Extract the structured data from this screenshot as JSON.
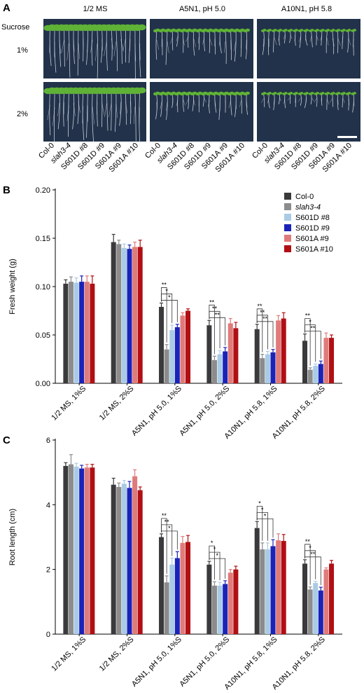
{
  "panel_a": {
    "label": "A",
    "row_header": "Sucrose",
    "columns": [
      "1/2 MS",
      "A5N1, pH 5.0",
      "A10N1, pH 5.8"
    ],
    "rows": [
      "1%",
      "2%"
    ],
    "genotypes": [
      "Col-0",
      "slah3-4",
      "S601D #8",
      "S601D #9",
      "S601A #9",
      "S601A #10"
    ],
    "italic_genotype": "slah3-4",
    "plate_color": "#22324a",
    "leaf_color": "#5fb236",
    "root_color": "#e6e9ee"
  },
  "chart_data": [
    {
      "label": "B",
      "type": "bar",
      "ylabel": "Fresh weight (g)",
      "ylim": [
        0,
        0.2
      ],
      "yticks": [
        "0.00",
        "0.05",
        "0.10",
        "0.15",
        "0.20"
      ],
      "categories": [
        "1/2 MS, 1%S",
        "1/2 MS, 2%S",
        "A5N1, pH 5.0, 1%S",
        "A5N1, pH 5.0, 2%S",
        "A10N1, pH 5.8, 1%S",
        "A10N1, pH 5.8, 2%S"
      ],
      "legend": "top-right",
      "series": [
        {
          "name": "Col-0",
          "color": "#3a3a3c",
          "values": [
            0.103,
            0.146,
            0.079,
            0.06,
            0.056,
            0.044
          ],
          "errors": [
            0.004,
            0.008,
            0.004,
            0.005,
            0.005,
            0.007
          ]
        },
        {
          "name": "slah3-4",
          "color": "#8c8c8c",
          "values": [
            0.105,
            0.144,
            0.035,
            0.024,
            0.026,
            0.014
          ],
          "errors": [
            0.005,
            0.004,
            0.005,
            0.004,
            0.004,
            0.002
          ]
        },
        {
          "name": "S601D #8",
          "color": "#a9cbe6",
          "values": [
            0.104,
            0.14,
            0.055,
            0.03,
            0.03,
            0.018
          ],
          "errors": [
            0.005,
            0.004,
            0.005,
            0.004,
            0.003,
            0.002
          ]
        },
        {
          "name": "S601D #9",
          "color": "#1a22b8",
          "values": [
            0.105,
            0.139,
            0.058,
            0.033,
            0.032,
            0.02
          ],
          "errors": [
            0.006,
            0.004,
            0.003,
            0.004,
            0.003,
            0.003
          ]
        },
        {
          "name": "S601A #9",
          "color": "#e07b7b",
          "values": [
            0.105,
            0.141,
            0.07,
            0.062,
            0.065,
            0.047
          ],
          "errors": [
            0.006,
            0.005,
            0.003,
            0.005,
            0.005,
            0.005
          ]
        },
        {
          "name": "S601A #10",
          "color": "#b00f14",
          "values": [
            0.103,
            0.141,
            0.075,
            0.057,
            0.067,
            0.047
          ],
          "errors": [
            0.008,
            0.007,
            0.002,
            0.006,
            0.006,
            0.003
          ]
        }
      ],
      "significance": [
        {
          "group": 2,
          "series": 1,
          "mark": "**"
        },
        {
          "group": 2,
          "series": 2,
          "mark": "*"
        },
        {
          "group": 2,
          "series": 3,
          "mark": "*"
        },
        {
          "group": 3,
          "series": 1,
          "mark": "**"
        },
        {
          "group": 3,
          "series": 2,
          "mark": "**"
        },
        {
          "group": 3,
          "series": 3,
          "mark": "**"
        },
        {
          "group": 4,
          "series": 1,
          "mark": "**"
        },
        {
          "group": 4,
          "series": 2,
          "mark": "**"
        },
        {
          "group": 4,
          "series": 3,
          "mark": "**"
        },
        {
          "group": 5,
          "series": 1,
          "mark": "**"
        },
        {
          "group": 5,
          "series": 2,
          "mark": "*"
        },
        {
          "group": 5,
          "series": 3,
          "mark": "**"
        }
      ]
    },
    {
      "label": "C",
      "type": "bar",
      "ylabel": "Root length (cm)",
      "ylim": [
        0,
        6
      ],
      "yticks": [
        "0",
        "2",
        "4",
        "6"
      ],
      "categories": [
        "1/2 MS, 1%S",
        "1/2 MS, 2%S",
        "A5N1, pH 5.0, 1%S",
        "A5N1, pH 5.0, 2%S",
        "A10N1, pH 5.8, 1%S",
        "A10N1, pH 5.8, 2%S"
      ],
      "series": [
        {
          "name": "Col-0",
          "color": "#3a3a3c",
          "values": [
            5.2,
            4.62,
            3.0,
            2.15,
            3.28,
            2.18
          ],
          "errors": [
            0.1,
            0.2,
            0.1,
            0.1,
            0.2,
            0.12
          ]
        },
        {
          "name": "slah3-4",
          "color": "#8c8c8c",
          "values": [
            5.25,
            4.55,
            1.6,
            1.5,
            2.62,
            1.38
          ],
          "errors": [
            0.3,
            0.12,
            0.2,
            0.12,
            0.2,
            0.08
          ]
        },
        {
          "name": "S601D #8",
          "color": "#a9cbe6",
          "values": [
            5.18,
            4.65,
            2.15,
            1.5,
            2.62,
            1.58
          ],
          "errors": [
            0.1,
            0.1,
            0.2,
            0.1,
            0.2,
            0.05
          ]
        },
        {
          "name": "S601D #9",
          "color": "#1a22b8",
          "values": [
            5.12,
            4.52,
            2.35,
            1.55,
            2.72,
            1.35
          ],
          "errors": [
            0.1,
            0.2,
            0.2,
            0.1,
            0.2,
            0.1
          ]
        },
        {
          "name": "S601A #9",
          "color": "#e07b7b",
          "values": [
            5.15,
            4.88,
            2.82,
            1.9,
            2.9,
            2.0
          ],
          "errors": [
            0.1,
            0.2,
            0.2,
            0.1,
            0.2,
            0.05
          ]
        },
        {
          "name": "S601A #10",
          "color": "#b00f14",
          "values": [
            5.15,
            4.45,
            2.85,
            2.0,
            2.88,
            2.18
          ],
          "errors": [
            0.1,
            0.1,
            0.2,
            0.1,
            0.2,
            0.1
          ]
        }
      ],
      "significance": [
        {
          "group": 2,
          "series": 1,
          "mark": "**"
        },
        {
          "group": 2,
          "series": 2,
          "mark": "**"
        },
        {
          "group": 2,
          "series": 3,
          "mark": "*"
        },
        {
          "group": 3,
          "series": 1,
          "mark": "*"
        },
        {
          "group": 3,
          "series": 2,
          "mark": "*"
        },
        {
          "group": 3,
          "series": 3,
          "mark": "*"
        },
        {
          "group": 4,
          "series": 1,
          "mark": "*"
        },
        {
          "group": 4,
          "series": 2,
          "mark": "*"
        },
        {
          "group": 4,
          "series": 3,
          "mark": "*"
        },
        {
          "group": 5,
          "series": 1,
          "mark": "**"
        },
        {
          "group": 5,
          "series": 2,
          "mark": "*"
        },
        {
          "group": 5,
          "series": 3,
          "mark": "**"
        }
      ]
    }
  ]
}
